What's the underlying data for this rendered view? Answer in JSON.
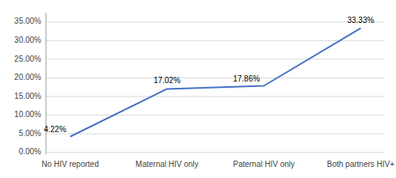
{
  "chart_data": {
    "type": "line",
    "categories": [
      "No HIV reported",
      "Maternal HIV only",
      "Paternal HIV only",
      "Both partners HIV+"
    ],
    "values": [
      4.22,
      17.02,
      17.86,
      33.33
    ],
    "value_labels": [
      "4.22%",
      "17.02%",
      "17.86%",
      "33.33%"
    ],
    "data_labels": true,
    "color": "#4472C4",
    "ylim": [
      -0.5,
      37.5
    ],
    "yticks": [
      {
        "value": 0,
        "label": "0.00%"
      },
      {
        "value": 5,
        "label": "5.00%"
      },
      {
        "value": 10,
        "label": "10.00%"
      },
      {
        "value": 15,
        "label": "15.00%"
      },
      {
        "value": 20,
        "label": "20.00%"
      },
      {
        "value": 25,
        "label": "25.00%"
      },
      {
        "value": 30,
        "label": "30.00%"
      },
      {
        "value": 35,
        "label": "35.00%"
      }
    ],
    "grid": true
  }
}
